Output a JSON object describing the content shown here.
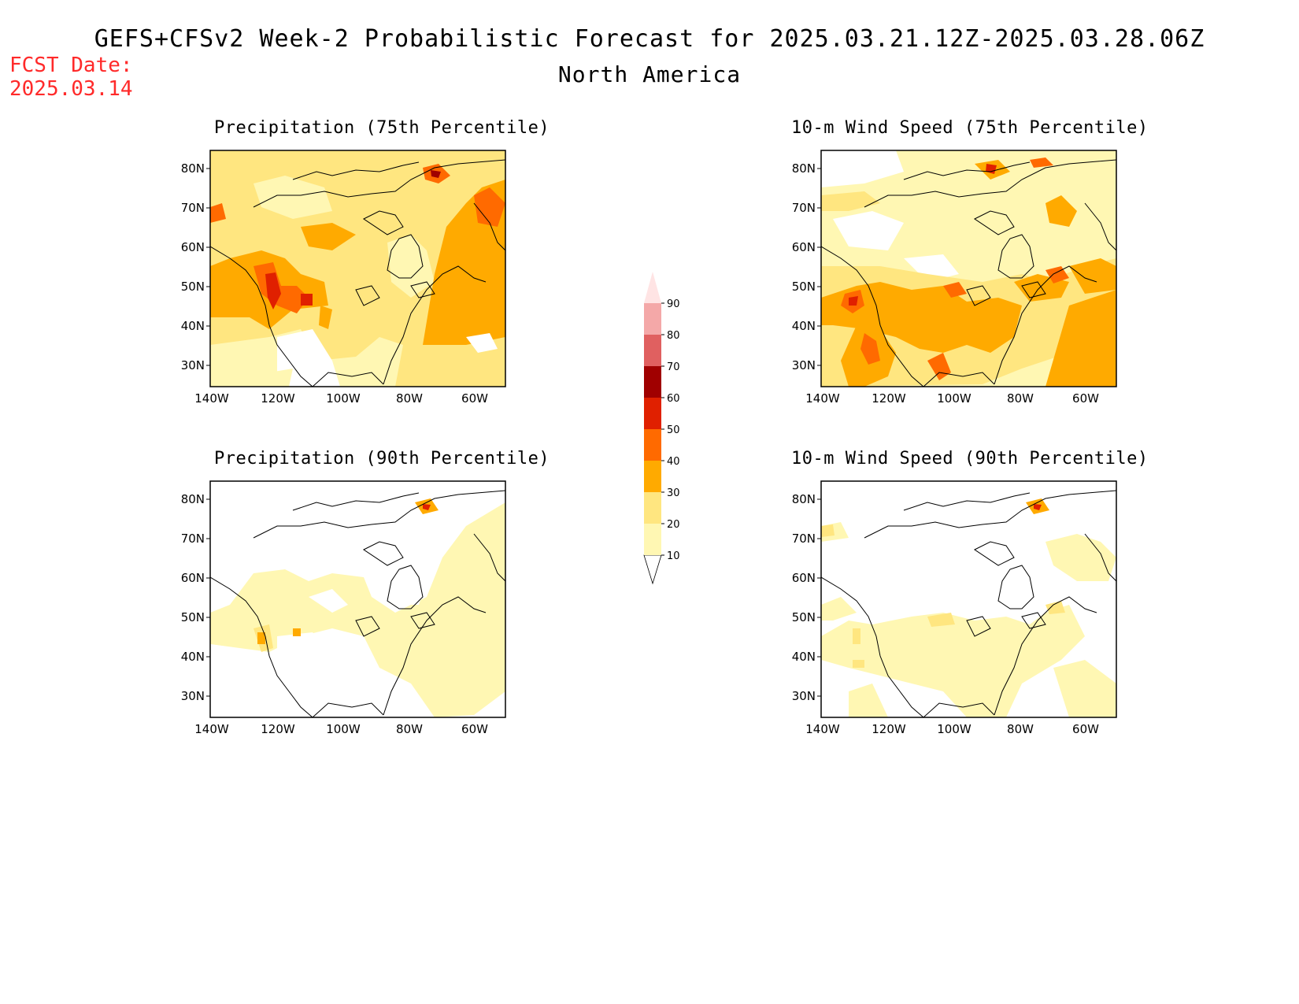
{
  "header": {
    "title": "GEFS+CFSv2 Week-2 Probabilistic Forecast for 2025.03.21.12Z-2025.03.28.06Z",
    "subtitle": "North America",
    "fcst_label": "FCST Date:",
    "fcst_date": "2025.03.14"
  },
  "axes": {
    "lat_labels": [
      "80N",
      "70N",
      "60N",
      "50N",
      "40N",
      "30N"
    ],
    "lon_labels": [
      "140W",
      "120W",
      "100W",
      "80W",
      "60W"
    ]
  },
  "panels": [
    {
      "id": "p1",
      "title": "Precipitation (75th Percentile)"
    },
    {
      "id": "p2",
      "title": "10-m Wind Speed (75th Percentile)"
    },
    {
      "id": "p3",
      "title": "Precipitation (90th Percentile)"
    },
    {
      "id": "p4",
      "title": "10-m Wind Speed (90th Percentile)"
    }
  ],
  "colorbar": {
    "labels": [
      "10",
      "20",
      "30",
      "40",
      "50",
      "60",
      "70",
      "80",
      "90"
    ],
    "colors": [
      "#fff7b3",
      "#ffe680",
      "#ffaa00",
      "#ff6a00",
      "#e02000",
      "#a00000",
      "#e06060",
      "#f4a8a8",
      "#ffe4e4"
    ]
  }
}
